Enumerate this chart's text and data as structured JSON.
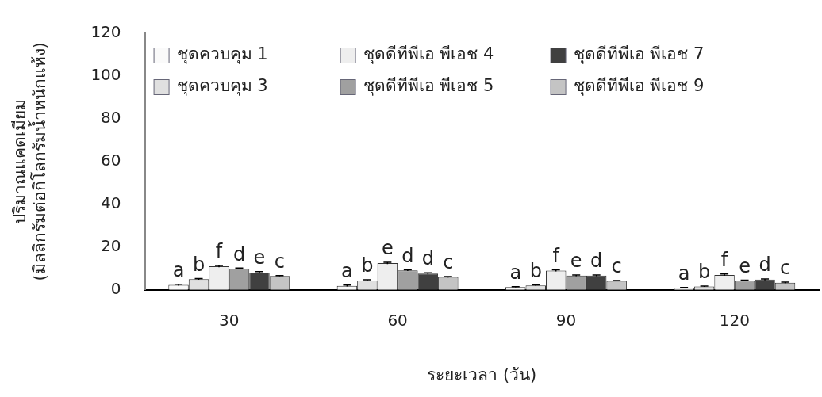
{
  "chart_data": {
    "type": "bar",
    "xlabel": "ระยะเวลา (วัน)",
    "ylabel": "ปริมาณแคดเมียม\n(มิลลิกรัมต่อกิโลกรัมน้ำหนักแห้ง)",
    "categories": [
      "30",
      "60",
      "90",
      "120"
    ],
    "ylim": [
      0,
      120
    ],
    "yticks": [
      0,
      20,
      40,
      60,
      80,
      100,
      120
    ],
    "grid": false,
    "legend": "top left",
    "series": [
      {
        "name": "ชุดควบคุม 1",
        "color": "#fafafa",
        "values": [
          2.3,
          1.9,
          1.3,
          0.9
        ],
        "errors": [
          0.3,
          0.3,
          0.2,
          0.2
        ],
        "value_labels": [
          "a",
          "a",
          "a",
          "a"
        ]
      },
      {
        "name": "ชุดควบคุม 3",
        "color": "#e0e0e0",
        "values": [
          5.0,
          4.4,
          2.1,
          1.6
        ],
        "errors": [
          0.3,
          0.3,
          0.2,
          0.2
        ],
        "value_labels": [
          "b",
          "b",
          "b",
          "b"
        ]
      },
      {
        "name": "ชุดดีทีพีเอ พีเอช 4",
        "color": "#eeeeee",
        "values": [
          11.0,
          12.5,
          9.0,
          7.0
        ],
        "errors": [
          0.4,
          0.4,
          0.4,
          0.4
        ],
        "value_labels": [
          "f",
          "e",
          "f",
          "f"
        ]
      },
      {
        "name": "ชุดดีทีพีเอ พีเอช 5",
        "color": "#a0a0a0",
        "values": [
          9.9,
          9.1,
          6.7,
          4.3
        ],
        "errors": [
          0.3,
          0.3,
          0.3,
          0.3
        ],
        "value_labels": [
          "d",
          "d",
          "e",
          "e"
        ]
      },
      {
        "name": "ชุดดีทีพีเอ พีเอช 7",
        "color": "#404040",
        "values": [
          8.1,
          7.6,
          6.7,
          4.8
        ],
        "errors": [
          0.4,
          0.4,
          0.3,
          0.3
        ],
        "value_labels": [
          "e",
          "d",
          "d",
          "d"
        ]
      },
      {
        "name": "ชุดดีทีพีเอ พีเอช 9",
        "color": "#c4c4c4",
        "values": [
          6.5,
          6.0,
          4.2,
          3.4
        ],
        "errors": [
          0.2,
          0.2,
          0.2,
          0.2
        ],
        "value_labels": [
          "c",
          "c",
          "c",
          "c"
        ]
      }
    ]
  }
}
